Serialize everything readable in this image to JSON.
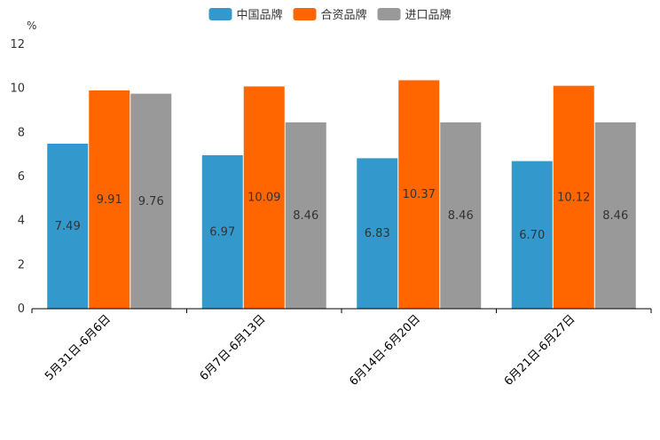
{
  "chart_data": {
    "type": "bar",
    "title": "",
    "xlabel": "",
    "ylabel": "%",
    "ylim": [
      0,
      12
    ],
    "yticks": [
      0,
      2,
      4,
      6,
      8,
      10,
      12
    ],
    "grid": false,
    "legend_position": "top-center",
    "categories": [
      "5月31日-6月6日",
      "6月7日-6月13日",
      "6月14日-6月20日",
      "6月21日-6月27日"
    ],
    "series": [
      {
        "name": "中国品牌",
        "color": "#3399cc",
        "values": [
          7.49,
          6.97,
          6.83,
          6.7
        ],
        "labels": [
          "7.49",
          "6.97",
          "6.83",
          "6.70"
        ]
      },
      {
        "name": "合资品牌",
        "color": "#ff6600",
        "values": [
          9.91,
          10.09,
          10.37,
          10.12
        ],
        "labels": [
          "9.91",
          "10.09",
          "10.37",
          "10.12"
        ]
      },
      {
        "name": "进口品牌",
        "color": "#999999",
        "values": [
          9.76,
          8.46,
          8.46,
          8.46
        ],
        "labels": [
          "9.76",
          "8.46",
          "8.46",
          "8.46"
        ]
      }
    ]
  }
}
